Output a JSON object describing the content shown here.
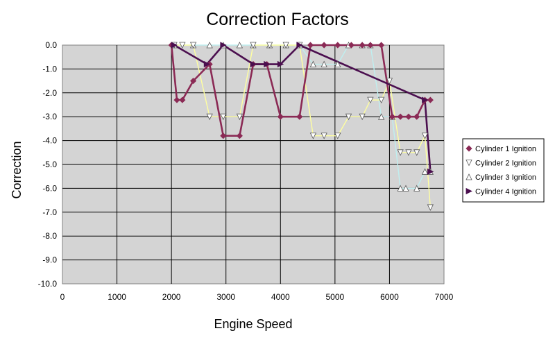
{
  "chart_data": {
    "type": "line",
    "title": "Correction Factors",
    "xlabel": "Engine Speed",
    "ylabel": "Correction",
    "xlim": [
      0,
      7000
    ],
    "ylim": [
      -10,
      0
    ],
    "x_ticks": [
      0,
      1000,
      2000,
      3000,
      4000,
      5000,
      6000,
      7000
    ],
    "y_ticks": [
      "0.0",
      "-1.0",
      "-2.0",
      "-3.0",
      "-4.0",
      "-5.0",
      "-6.0",
      "-7.0",
      "-8.0",
      "-9.0",
      "-10.0"
    ],
    "grid": true,
    "legend_position": "right",
    "plot_background": "#d4d4d4",
    "series": [
      {
        "name": "Cylinder 1 Ignition",
        "color": "#8b2a55",
        "marker": "diamond",
        "points": [
          [
            2000,
            0
          ],
          [
            2100,
            -2.3
          ],
          [
            2200,
            -2.3
          ],
          [
            2400,
            -1.5
          ],
          [
            2700,
            -0.8
          ],
          [
            2950,
            -3.8
          ],
          [
            3250,
            -3.8
          ],
          [
            3500,
            -0.8
          ],
          [
            3750,
            -0.8
          ],
          [
            4000,
            -3.0
          ],
          [
            4350,
            -3.0
          ],
          [
            4550,
            0
          ],
          [
            4800,
            0
          ],
          [
            5050,
            0
          ],
          [
            5300,
            0
          ],
          [
            5500,
            0
          ],
          [
            5650,
            0
          ],
          [
            5850,
            0
          ],
          [
            6050,
            -3.0
          ],
          [
            6200,
            -3.0
          ],
          [
            6350,
            -3.0
          ],
          [
            6500,
            -3.0
          ],
          [
            6650,
            -2.3
          ],
          [
            6750,
            -2.3
          ]
        ]
      },
      {
        "name": "Cylinder 2 Ignition",
        "color": "#ffffa0",
        "marker": "triangle-down",
        "points": [
          [
            2050,
            0
          ],
          [
            2200,
            0
          ],
          [
            2400,
            0
          ],
          [
            2700,
            -3.0
          ],
          [
            2950,
            -3.0
          ],
          [
            3250,
            -3.0
          ],
          [
            3500,
            0
          ],
          [
            3800,
            0
          ],
          [
            4100,
            0
          ],
          [
            4350,
            0
          ],
          [
            4600,
            -3.8
          ],
          [
            4800,
            -3.8
          ],
          [
            5050,
            -3.8
          ],
          [
            5250,
            -3.0
          ],
          [
            5500,
            -3.0
          ],
          [
            5650,
            -2.3
          ],
          [
            5850,
            -2.3
          ],
          [
            6000,
            -1.5
          ],
          [
            6200,
            -4.5
          ],
          [
            6350,
            -4.5
          ],
          [
            6500,
            -4.5
          ],
          [
            6650,
            -3.8
          ],
          [
            6750,
            -6.8
          ]
        ]
      },
      {
        "name": "Cylinder 3 Ignition",
        "color": "#bfeff0",
        "marker": "triangle-up",
        "points": [
          [
            2050,
            0
          ],
          [
            2400,
            0
          ],
          [
            2700,
            0
          ],
          [
            2950,
            0
          ],
          [
            3250,
            0
          ],
          [
            3500,
            0
          ],
          [
            3800,
            0
          ],
          [
            4100,
            0
          ],
          [
            4350,
            0
          ],
          [
            4600,
            -0.8
          ],
          [
            4800,
            -0.8
          ],
          [
            5050,
            -0.8
          ],
          [
            5250,
            0
          ],
          [
            5500,
            0
          ],
          [
            5650,
            0
          ],
          [
            5850,
            -3.0
          ],
          [
            6050,
            -3.0
          ],
          [
            6200,
            -6.0
          ],
          [
            6300,
            -6.0
          ],
          [
            6500,
            -6.0
          ],
          [
            6650,
            -5.3
          ],
          [
            6750,
            -5.3
          ]
        ]
      },
      {
        "name": "Cylinder 4 Ignition",
        "color": "#4b0f4f",
        "marker": "triangle-right",
        "points": [
          [
            2050,
            0
          ],
          [
            2650,
            -0.8
          ],
          [
            2950,
            0
          ],
          [
            3500,
            -0.8
          ],
          [
            3750,
            -0.8
          ],
          [
            4000,
            -0.8
          ],
          [
            4350,
            0
          ],
          [
            6650,
            -2.3
          ],
          [
            6750,
            -5.3
          ]
        ]
      }
    ]
  }
}
